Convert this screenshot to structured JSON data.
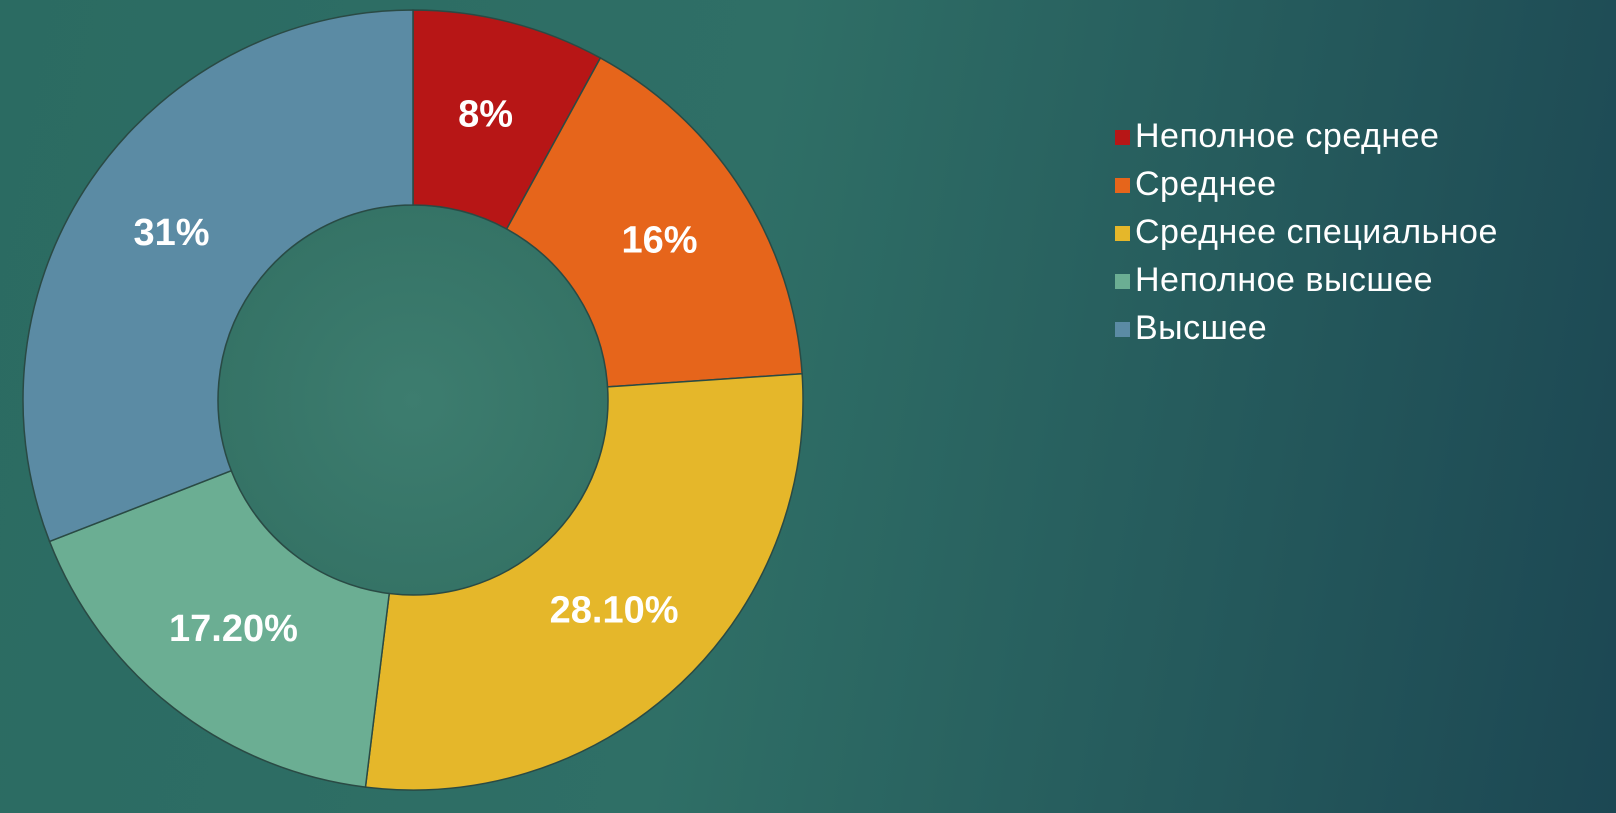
{
  "chart_data": {
    "type": "donut",
    "categories": [
      "Неполное среднее",
      "Среднее",
      "Среднее специальное",
      "Неполное высшее",
      "Высшее"
    ],
    "values": [
      8,
      16,
      28.1,
      17.2,
      31
    ],
    "value_labels": [
      "8%",
      "16%",
      "28.10%",
      "17.20%",
      "31%"
    ],
    "colors": [
      "#b71616",
      "#e6651b",
      "#e5b72a",
      "#6bae93",
      "#5b8ba4"
    ],
    "legend": "right"
  }
}
